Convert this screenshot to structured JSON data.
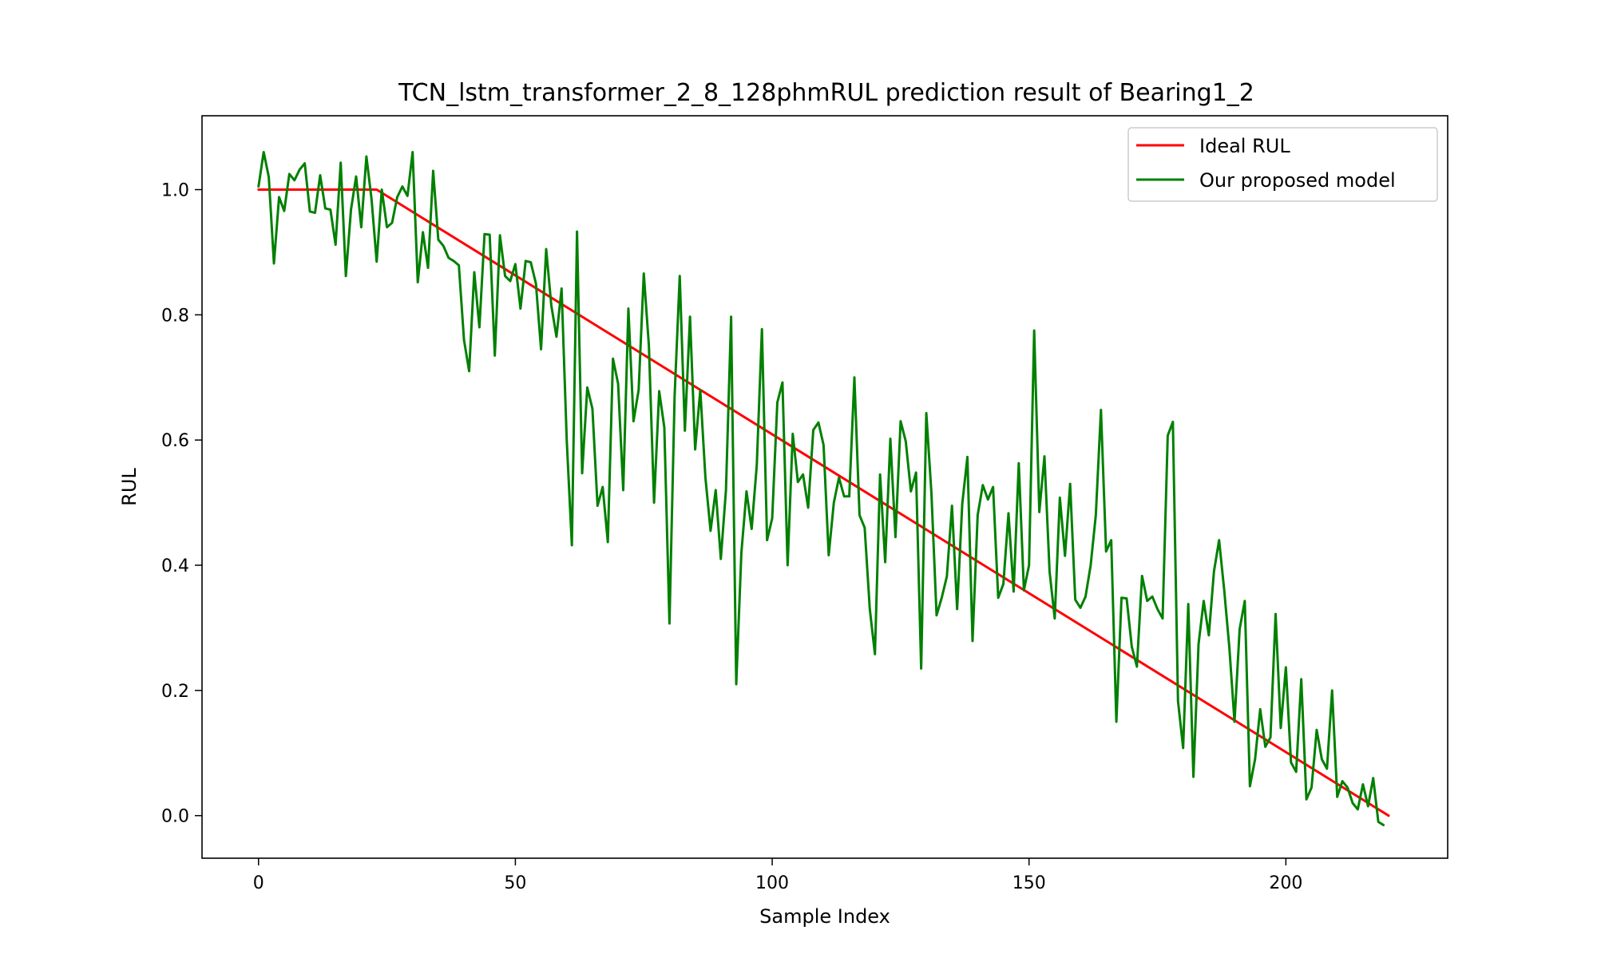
{
  "chart_data": {
    "type": "line",
    "title": "TCN_lstm_transformer_2_8_128phmRUL prediction result of Bearing1_2",
    "xlabel": "Sample Index",
    "ylabel": "RUL",
    "xlim": [
      -11,
      231.5
    ],
    "ylim": [
      -0.068,
      1.118
    ],
    "xticks": [
      0,
      50,
      100,
      150,
      200
    ],
    "yticks": [
      0.0,
      0.2,
      0.4,
      0.6,
      0.8,
      1.0
    ],
    "xtick_labels": [
      "0",
      "50",
      "100",
      "150",
      "200"
    ],
    "ytick_labels": [
      "0.0",
      "0.2",
      "0.4",
      "0.6",
      "0.8",
      "1.0"
    ],
    "grid": false,
    "legend_position": "upper-right",
    "series": [
      {
        "name": "Ideal RUL",
        "color": "#ff0000",
        "x": [
          0,
          23,
          220
        ],
        "y": [
          1.0,
          1.0,
          0.0
        ]
      },
      {
        "name": "Our proposed model",
        "color": "#008000",
        "y": [
          1.005,
          1.06,
          1.02,
          0.882,
          0.988,
          0.966,
          1.025,
          1.015,
          1.032,
          1.042,
          0.965,
          0.963,
          1.023,
          0.97,
          0.968,
          0.912,
          1.043,
          0.862,
          0.968,
          1.021,
          0.94,
          1.053,
          0.985,
          0.885,
          1.0,
          0.94,
          0.947,
          0.988,
          1.005,
          0.99,
          1.06,
          0.852,
          0.932,
          0.875,
          1.03,
          0.92,
          0.91,
          0.891,
          0.886,
          0.879,
          0.76,
          0.71,
          0.868,
          0.78,
          0.929,
          0.928,
          0.735,
          0.927,
          0.862,
          0.854,
          0.881,
          0.81,
          0.886,
          0.884,
          0.85,
          0.745,
          0.905,
          0.815,
          0.765,
          0.842,
          0.6,
          0.432,
          0.933,
          0.547,
          0.684,
          0.65,
          0.495,
          0.525,
          0.437,
          0.73,
          0.69,
          0.52,
          0.81,
          0.63,
          0.68,
          0.866,
          0.75,
          0.5,
          0.678,
          0.62,
          0.307,
          0.67,
          0.862,
          0.615,
          0.797,
          0.585,
          0.68,
          0.54,
          0.455,
          0.52,
          0.41,
          0.52,
          0.797,
          0.21,
          0.42,
          0.518,
          0.458,
          0.56,
          0.777,
          0.44,
          0.475,
          0.66,
          0.692,
          0.4,
          0.61,
          0.533,
          0.545,
          0.492,
          0.616,
          0.628,
          0.592,
          0.416,
          0.5,
          0.54,
          0.51,
          0.51,
          0.7,
          0.48,
          0.46,
          0.33,
          0.258,
          0.545,
          0.405,
          0.602,
          0.445,
          0.63,
          0.598,
          0.518,
          0.548,
          0.235,
          0.643,
          0.515,
          0.32,
          0.348,
          0.382,
          0.495,
          0.33,
          0.498,
          0.573,
          0.279,
          0.48,
          0.528,
          0.505,
          0.525,
          0.348,
          0.37,
          0.483,
          0.358,
          0.563,
          0.36,
          0.4,
          0.775,
          0.485,
          0.574,
          0.39,
          0.315,
          0.508,
          0.415,
          0.53,
          0.345,
          0.332,
          0.35,
          0.4,
          0.48,
          0.648,
          0.422,
          0.44,
          0.15,
          0.348,
          0.347,
          0.27,
          0.238,
          0.383,
          0.343,
          0.35,
          0.33,
          0.315,
          0.607,
          0.629,
          0.183,
          0.108,
          0.338,
          0.062,
          0.274,
          0.343,
          0.288,
          0.39,
          0.44,
          0.36,
          0.268,
          0.15,
          0.298,
          0.343,
          0.047,
          0.09,
          0.17,
          0.11,
          0.125,
          0.322,
          0.14,
          0.237,
          0.085,
          0.07,
          0.218,
          0.026,
          0.045,
          0.137,
          0.09,
          0.075,
          0.2,
          0.03,
          0.055,
          0.045,
          0.02,
          0.01,
          0.05,
          0.015,
          0.06,
          -0.01,
          -0.015
        ]
      }
    ]
  }
}
